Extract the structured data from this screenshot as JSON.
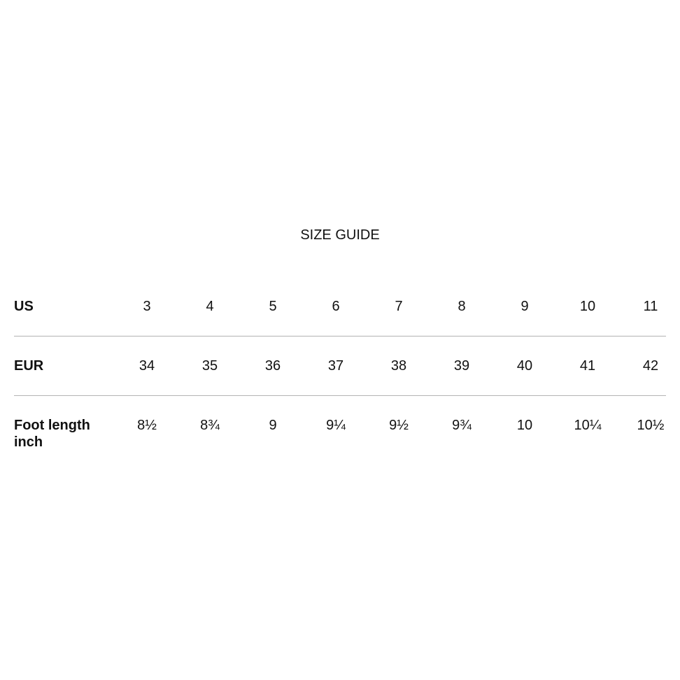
{
  "title": "SIZE GUIDE",
  "colors": {
    "background": "#ffffff",
    "text": "#111111",
    "divider": "#b3b3b3"
  },
  "size_table": {
    "rows": [
      {
        "label": "US",
        "values": [
          "3",
          "4",
          "5",
          "6",
          "7",
          "8",
          "9",
          "10",
          "11"
        ]
      },
      {
        "label": "EUR",
        "values": [
          "34",
          "35",
          "36",
          "37",
          "38",
          "39",
          "40",
          "41",
          "42"
        ]
      },
      {
        "label": "Foot length inch",
        "values": [
          "8½",
          "8¾",
          "9",
          "9¼",
          "9½",
          "9¾",
          "10",
          "10¼",
          "10½"
        ]
      }
    ]
  }
}
